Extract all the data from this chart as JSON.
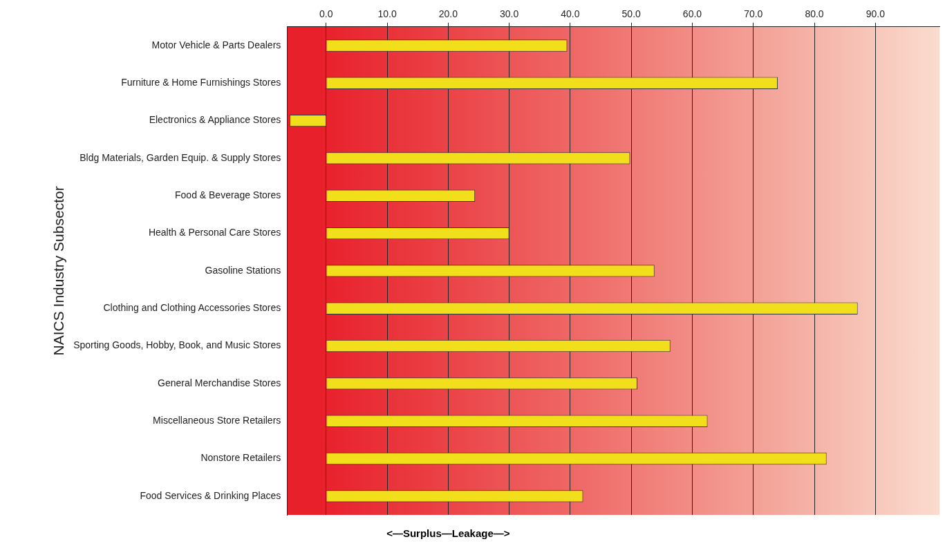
{
  "chart_data": {
    "type": "bar",
    "orientation": "horizontal",
    "xlabel": "<—Surplus—Leakage—>",
    "ylabel": "NAICS Industry Subsector",
    "categories": [
      "Motor Vehicle & Parts Dealers",
      "Furniture & Home Furnishings Stores",
      "Electronics & Appliance Stores",
      "Bldg Materials, Garden Equip. & Supply Stores",
      "Food & Beverage Stores",
      "Health & Personal Care Stores",
      "Gasoline Stations",
      "Clothing and Clothing Accessories Stores",
      "Sporting Goods, Hobby, Book, and Music Stores",
      "General Merchandise Stores",
      "Miscellaneous Store Retailers",
      "Nonstore Retailers",
      "Food Services & Drinking Places"
    ],
    "values": [
      39.5,
      74.0,
      -6.0,
      49.8,
      24.4,
      30.0,
      53.8,
      87.1,
      56.4,
      51.0,
      62.5,
      82.0,
      42.1
    ],
    "color": "#f2df1c",
    "xlim": [
      -6.4,
      100.5
    ],
    "xticks": [
      {
        "value": 0,
        "label": "0.0"
      },
      {
        "value": 10,
        "label": "10.0"
      },
      {
        "value": 20,
        "label": "20.0"
      },
      {
        "value": 30,
        "label": "30.0"
      },
      {
        "value": 40,
        "label": "40.0"
      },
      {
        "value": 50,
        "label": "50.0"
      },
      {
        "value": 60,
        "label": "60.0"
      },
      {
        "value": 70,
        "label": "70.0"
      },
      {
        "value": 80,
        "label": "80.0"
      },
      {
        "value": 90,
        "label": "90.0"
      }
    ],
    "grid": "x",
    "legend": false
  }
}
